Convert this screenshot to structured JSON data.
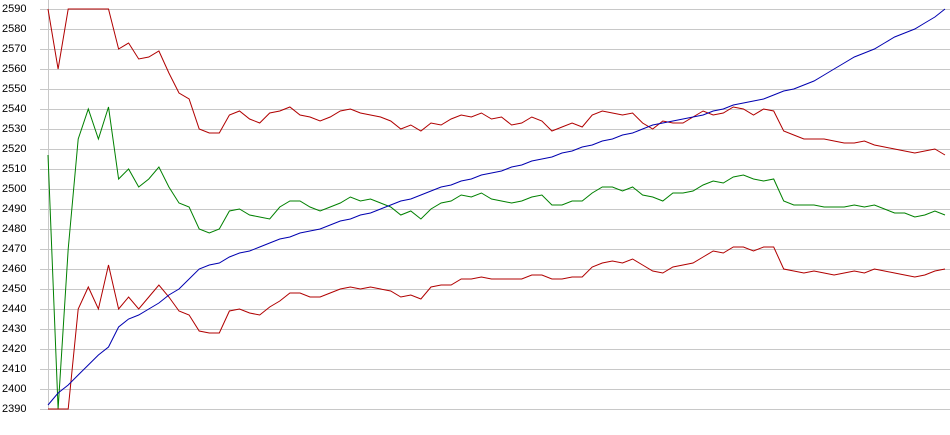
{
  "chart_data": {
    "type": "line",
    "categories": [
      null,
      null,
      null,
      null,
      null,
      null,
      null,
      null,
      null,
      null,
      null,
      null,
      null,
      null,
      null,
      null,
      null,
      null,
      null,
      null,
      null,
      null,
      null,
      null,
      null,
      null,
      null,
      null,
      null,
      null,
      null,
      null,
      null,
      null,
      null,
      null,
      null,
      null,
      null,
      null,
      null,
      null,
      null,
      null,
      null,
      null,
      null,
      null,
      null,
      null,
      null,
      null,
      null,
      null,
      null,
      null,
      null,
      null,
      null,
      null,
      null,
      null,
      null,
      null,
      null,
      null,
      null,
      null,
      null,
      null,
      null,
      null,
      null,
      null,
      null,
      null,
      null,
      null,
      null,
      null,
      null,
      null,
      null,
      null,
      null,
      null,
      null,
      null,
      null,
      null
    ],
    "series": [
      {
        "color": "#b00000",
        "values": [
          2590,
          2560,
          2590,
          2590,
          2590,
          2590,
          2590,
          2570,
          2573,
          2565,
          2566,
          2569,
          2558,
          2548,
          2545,
          2530,
          2528,
          2528,
          2537,
          2539,
          2535,
          2533,
          2538,
          2539,
          2541,
          2537,
          2536,
          2534,
          2536,
          2539,
          2540,
          2538,
          2537,
          2536,
          2534,
          2530,
          2532,
          2529,
          2533,
          2532,
          2535,
          2537,
          2536,
          2538,
          2535,
          2536,
          2532,
          2533,
          2536,
          2534,
          2529,
          2531,
          2533,
          2531,
          2537,
          2539,
          2538,
          2537,
          2538,
          2533,
          2530,
          2534,
          2533,
          2533,
          2536,
          2539,
          2537,
          2538,
          2541,
          2540,
          2537,
          2540,
          2539,
          2529,
          2527,
          2525,
          2525,
          2525,
          2524,
          2523,
          2523,
          2524,
          2522,
          2521,
          2520,
          2519,
          2518,
          2519,
          2520,
          2517
        ]
      },
      {
        "color": "#008000",
        "values": [
          2517,
          2390,
          2470,
          2525,
          2540,
          2525,
          2541,
          2505,
          2510,
          2501,
          2505,
          2511,
          2501,
          2493,
          2491,
          2480,
          2478,
          2480,
          2489,
          2490,
          2487,
          2486,
          2485,
          2491,
          2494,
          2494,
          2491,
          2489,
          2491,
          2493,
          2496,
          2494,
          2495,
          2493,
          2491,
          2487,
          2489,
          2485,
          2490,
          2493,
          2494,
          2497,
          2496,
          2498,
          2495,
          2494,
          2493,
          2494,
          2496,
          2497,
          2492,
          2492,
          2494,
          2494,
          2498,
          2501,
          2501,
          2499,
          2501,
          2497,
          2496,
          2494,
          2498,
          2498,
          2499,
          2502,
          2504,
          2503,
          2506,
          2507,
          2505,
          2504,
          2505,
          2494,
          2492,
          2492,
          2492,
          2491,
          2491,
          2491,
          2492,
          2491,
          2492,
          2490,
          2488,
          2488,
          2486,
          2487,
          2489,
          2487
        ]
      },
      {
        "color": "#b00000",
        "values": [
          2390,
          2390,
          2390,
          2440,
          2451,
          2440,
          2462,
          2440,
          2446,
          2440,
          2446,
          2452,
          2446,
          2439,
          2437,
          2429,
          2428,
          2428,
          2439,
          2440,
          2438,
          2437,
          2441,
          2444,
          2448,
          2448,
          2446,
          2446,
          2448,
          2450,
          2451,
          2450,
          2451,
          2450,
          2449,
          2446,
          2447,
          2445,
          2451,
          2452,
          2452,
          2455,
          2455,
          2456,
          2455,
          2455,
          2455,
          2455,
          2457,
          2457,
          2455,
          2455,
          2456,
          2456,
          2461,
          2463,
          2464,
          2463,
          2465,
          2462,
          2459,
          2458,
          2461,
          2462,
          2463,
          2466,
          2469,
          2468,
          2471,
          2471,
          2469,
          2471,
          2471,
          2460,
          2459,
          2458,
          2459,
          2458,
          2457,
          2458,
          2459,
          2458,
          2460,
          2459,
          2458,
          2457,
          2456,
          2457,
          2459,
          2460
        ]
      },
      {
        "color": "#0000b0",
        "values": [
          2392,
          2398,
          2402,
          2407,
          2412,
          2417,
          2421,
          2431,
          2435,
          2437,
          2440,
          2443,
          2447,
          2450,
          2455,
          2460,
          2462,
          2463,
          2466,
          2468,
          2469,
          2471,
          2473,
          2475,
          2476,
          2478,
          2479,
          2480,
          2482,
          2484,
          2485,
          2487,
          2488,
          2490,
          2492,
          2494,
          2495,
          2497,
          2499,
          2501,
          2502,
          2504,
          2505,
          2507,
          2508,
          2509,
          2511,
          2512,
          2514,
          2515,
          2516,
          2518,
          2519,
          2521,
          2522,
          2524,
          2525,
          2527,
          2528,
          2530,
          2532,
          2533,
          2534,
          2535,
          2536,
          2537,
          2539,
          2540,
          2542,
          2543,
          2544,
          2545,
          2547,
          2549,
          2550,
          2552,
          2554,
          2557,
          2560,
          2563,
          2566,
          2568,
          2570,
          2573,
          2576,
          2578,
          2580,
          2583,
          2586,
          2590
        ]
      }
    ],
    "ylim": [
      2390,
      2590
    ],
    "yticks": [
      2390,
      2400,
      2410,
      2420,
      2430,
      2440,
      2450,
      2460,
      2470,
      2480,
      2490,
      2500,
      2510,
      2520,
      2530,
      2540,
      2550,
      2560,
      2570,
      2580,
      2590
    ],
    "grid": true
  }
}
